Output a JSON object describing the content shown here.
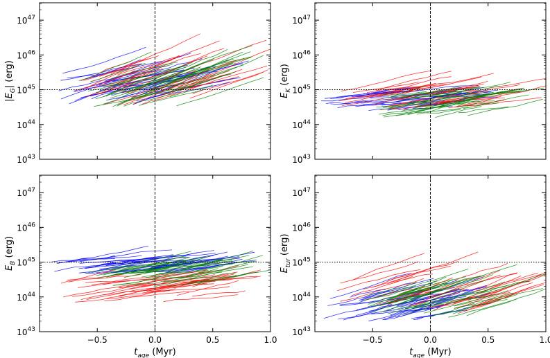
{
  "chart_data": [
    {
      "type": "line",
      "panel": "top-left",
      "ylabel_main": "|E",
      "ylabel_sub": "G",
      "ylabel_end": "| (erg)",
      "xlabel": "",
      "xlim": [
        -1.0,
        1.0
      ],
      "ylim_exp": [
        43,
        47.5
      ],
      "xticks": [
        -0.5,
        0.0,
        0.5,
        1.0
      ],
      "xtick_labels": [],
      "yticks_exp": [
        43,
        44,
        45,
        46,
        47
      ],
      "hline_exp": 45,
      "vline_x": 0.0,
      "series": [
        {
          "name": "blue",
          "color": "#0000ff",
          "n": 40,
          "x0_range": [
            -0.85,
            0.05
          ],
          "y0_range": [
            44.55,
            45.5
          ],
          "dx_range": [
            0.4,
            0.85
          ],
          "slope_range": [
            0.55,
            1.15
          ]
        },
        {
          "name": "red",
          "color": "#ff0000",
          "n": 40,
          "x0_range": [
            -0.7,
            0.35
          ],
          "y0_range": [
            44.55,
            45.5
          ],
          "dx_range": [
            0.35,
            0.85
          ],
          "slope_range": [
            0.85,
            1.45
          ]
        },
        {
          "name": "green",
          "color": "#008000",
          "n": 40,
          "x0_range": [
            -0.75,
            0.25
          ],
          "y0_range": [
            44.5,
            45.3
          ],
          "dx_range": [
            0.35,
            0.8
          ],
          "slope_range": [
            0.8,
            1.35
          ]
        }
      ]
    },
    {
      "type": "line",
      "panel": "top-right",
      "ylabel_main": "E",
      "ylabel_sub": "K",
      "ylabel_end": " (erg)",
      "xlabel": "",
      "xlim": [
        -1.0,
        1.0
      ],
      "ylim_exp": [
        43,
        47.5
      ],
      "xticks": [
        -0.5,
        0.0,
        0.5,
        1.0
      ],
      "xtick_labels": [],
      "yticks_exp": [
        43,
        44,
        45,
        46,
        47
      ],
      "hline_exp": 45,
      "vline_x": 0.0,
      "series": [
        {
          "name": "blue",
          "color": "#0000ff",
          "n": 40,
          "x0_range": [
            -0.95,
            0.1
          ],
          "y0_range": [
            44.4,
            44.95
          ],
          "dx_range": [
            0.3,
            0.75
          ],
          "slope_range": [
            0.15,
            0.6
          ]
        },
        {
          "name": "red",
          "color": "#ff0000",
          "n": 40,
          "x0_range": [
            -0.8,
            0.35
          ],
          "y0_range": [
            44.4,
            45.0
          ],
          "dx_range": [
            0.3,
            0.8
          ],
          "slope_range": [
            0.3,
            0.75
          ]
        },
        {
          "name": "green",
          "color": "#008000",
          "n": 40,
          "x0_range": [
            -0.5,
            0.35
          ],
          "y0_range": [
            44.2,
            44.85
          ],
          "dx_range": [
            0.3,
            0.75
          ],
          "slope_range": [
            0.3,
            0.8
          ]
        }
      ]
    },
    {
      "type": "line",
      "panel": "bottom-left",
      "ylabel_main": "E",
      "ylabel_sub": "B",
      "ylabel_end": " (erg)",
      "xlabel_main": "t",
      "xlabel_sub": "age",
      "xlabel_end": " (Myr)",
      "xlim": [
        -1.0,
        1.0
      ],
      "ylim_exp": [
        43,
        47.5
      ],
      "xticks": [
        -0.5,
        0.0,
        0.5,
        1.0
      ],
      "xtick_labels": [
        "−0.5",
        "0.0",
        "0.5",
        "1.0"
      ],
      "yticks_exp": [
        43,
        44,
        45,
        46,
        47
      ],
      "hline_exp": 45,
      "vline_x": 0.0,
      "series": [
        {
          "name": "blue",
          "color": "#0000ff",
          "n": 40,
          "x0_range": [
            -0.95,
            0.1
          ],
          "y0_range": [
            44.65,
            45.05
          ],
          "dx_range": [
            0.35,
            0.85
          ],
          "slope_range": [
            0.2,
            0.6
          ]
        },
        {
          "name": "red",
          "color": "#ff0000",
          "n": 40,
          "x0_range": [
            -0.85,
            0.35
          ],
          "y0_range": [
            43.85,
            44.5
          ],
          "dx_range": [
            0.35,
            0.8
          ],
          "slope_range": [
            0.25,
            0.7
          ]
        },
        {
          "name": "green",
          "color": "#008000",
          "n": 40,
          "x0_range": [
            -0.65,
            0.35
          ],
          "y0_range": [
            44.3,
            44.85
          ],
          "dx_range": [
            0.35,
            0.8
          ],
          "slope_range": [
            0.4,
            0.8
          ]
        }
      ]
    },
    {
      "type": "line",
      "panel": "bottom-right",
      "ylabel_main": "E",
      "ylabel_sub": "tur",
      "ylabel_end": " (erg)",
      "xlabel_main": "t",
      "xlabel_sub": "age",
      "xlabel_end": " (Myr)",
      "xlim": [
        -1.0,
        1.0
      ],
      "ylim_exp": [
        43,
        47.5
      ],
      "xticks": [
        -0.5,
        0.0,
        0.5,
        1.0
      ],
      "xtick_labels": [
        "−0.5",
        "0.0",
        "0.5",
        "1.0"
      ],
      "yticks_exp": [
        43,
        44,
        45,
        46,
        47
      ],
      "hline_exp": 45,
      "vline_x": 0.0,
      "series": [
        {
          "name": "blue",
          "color": "#0000ff",
          "n": 40,
          "x0_range": [
            -0.95,
            0.1
          ],
          "y0_range": [
            43.3,
            44.0
          ],
          "dx_range": [
            0.3,
            0.75
          ],
          "slope_range": [
            0.5,
            1.1
          ]
        },
        {
          "name": "red",
          "color": "#ff0000",
          "n": 40,
          "x0_range": [
            -0.85,
            0.45
          ],
          "y0_range": [
            43.5,
            44.5
          ],
          "dx_range": [
            0.3,
            0.8
          ],
          "slope_range": [
            0.7,
            1.3
          ]
        },
        {
          "name": "green",
          "color": "#008000",
          "n": 40,
          "x0_range": [
            -0.6,
            0.35
          ],
          "y0_range": [
            43.4,
            44.1
          ],
          "dx_range": [
            0.35,
            0.8
          ],
          "slope_range": [
            0.7,
            1.2
          ]
        }
      ]
    }
  ]
}
